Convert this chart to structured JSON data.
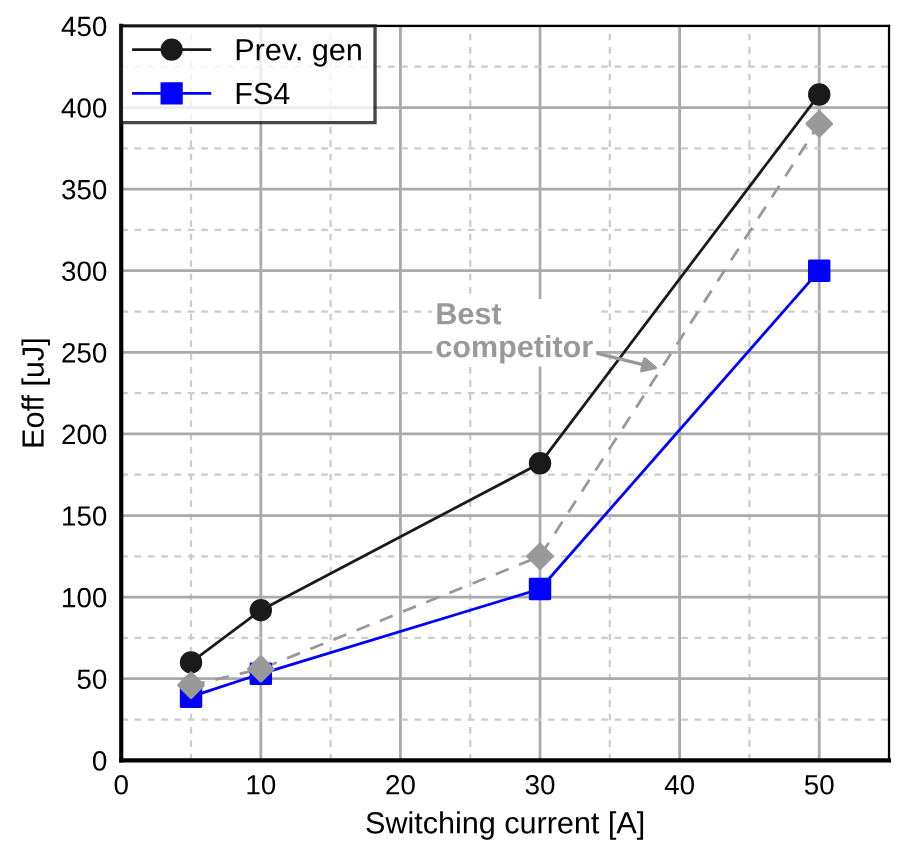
{
  "chart_data": {
    "type": "line",
    "xlabel": "Switching current [A]",
    "ylabel": "Eoff [uJ]",
    "x": [
      5,
      10,
      30,
      50
    ],
    "series": [
      {
        "name": "Prev. gen",
        "color": "#1a1a1a",
        "marker": "circle",
        "line_style": "solid",
        "values": [
          60,
          92,
          182,
          408
        ]
      },
      {
        "name": "FS4",
        "color": "#0000ff",
        "marker": "square",
        "line_style": "solid",
        "values": [
          39,
          53,
          105,
          300
        ]
      },
      {
        "color": "#999999",
        "marker": "diamond",
        "line_style": "dashed",
        "values": [
          46,
          56,
          125,
          390
        ]
      }
    ],
    "annotations": [
      {
        "text": "Best\ncompetitor",
        "x": 38.5,
        "y": 240
      }
    ],
    "xlim": [
      0,
      55
    ],
    "ylim": [
      0,
      450
    ],
    "xticks": [
      0,
      10,
      20,
      30,
      40,
      50
    ],
    "yticks": [
      0,
      50,
      100,
      150,
      200,
      250,
      300,
      350,
      400,
      450
    ],
    "grid": true,
    "legend": "top left"
  }
}
